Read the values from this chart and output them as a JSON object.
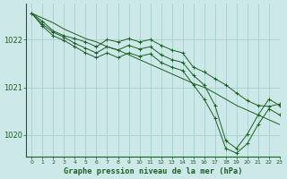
{
  "bg_color": "#cce8e8",
  "grid_color": "#a8cece",
  "line_color": "#1a6020",
  "marker_color": "#1a6020",
  "title": "Graphe pression niveau de la mer (hPa)",
  "xlim": [
    -0.5,
    23
  ],
  "ylim": [
    1019.55,
    1022.75
  ],
  "yticks": [
    1020,
    1021,
    1022
  ],
  "xticks": [
    0,
    1,
    2,
    3,
    4,
    5,
    6,
    7,
    8,
    9,
    10,
    11,
    12,
    13,
    14,
    15,
    16,
    17,
    18,
    19,
    20,
    21,
    22,
    23
  ],
  "series": [
    {
      "x": [
        0,
        1,
        2,
        3,
        4,
        5,
        6,
        7,
        8,
        9,
        10,
        11,
        12,
        13,
        14,
        15,
        16,
        17,
        18,
        19,
        20,
        21,
        22,
        23
      ],
      "y": [
        1022.55,
        1022.45,
        1022.35,
        1022.22,
        1022.12,
        1022.02,
        1021.95,
        1021.85,
        1021.78,
        1021.68,
        1021.58,
        1021.48,
        1021.38,
        1021.28,
        1021.18,
        1021.08,
        1021.0,
        1020.88,
        1020.75,
        1020.62,
        1020.52,
        1020.42,
        1020.32,
        1020.22
      ],
      "marker": false
    },
    {
      "x": [
        0,
        1,
        2,
        3,
        4,
        5,
        6,
        7,
        8,
        9,
        10,
        11,
        12,
        13,
        14,
        15,
        16,
        17,
        18,
        19,
        20,
        21,
        22,
        23
      ],
      "y": [
        1022.55,
        1022.38,
        1022.18,
        1022.08,
        1022.02,
        1021.95,
        1021.85,
        1022.0,
        1021.95,
        1022.02,
        1021.95,
        1022.0,
        1021.88,
        1021.78,
        1021.72,
        1021.42,
        1021.32,
        1021.18,
        1021.05,
        1020.88,
        1020.72,
        1020.62,
        1020.6,
        1020.65
      ],
      "marker": true
    },
    {
      "x": [
        0,
        1,
        2,
        3,
        4,
        5,
        6,
        7,
        8,
        9,
        10,
        11,
        12,
        13,
        14,
        15,
        16,
        17,
        18,
        19,
        20,
        21,
        22,
        23
      ],
      "y": [
        1022.55,
        1022.32,
        1022.15,
        1022.05,
        1021.92,
        1021.82,
        1021.72,
        1021.85,
        1021.78,
        1021.88,
        1021.8,
        1021.85,
        1021.68,
        1021.58,
        1021.52,
        1021.25,
        1021.05,
        1020.62,
        1019.88,
        1019.72,
        1020.02,
        1020.42,
        1020.75,
        1020.62
      ],
      "marker": true
    },
    {
      "x": [
        0,
        1,
        2,
        3,
        4,
        5,
        6,
        7,
        8,
        9,
        10,
        11,
        12,
        13,
        14,
        15,
        16,
        17,
        18,
        19,
        20,
        21,
        22,
        23
      ],
      "y": [
        1022.55,
        1022.28,
        1022.08,
        1021.98,
        1021.85,
        1021.72,
        1021.62,
        1021.72,
        1021.62,
        1021.72,
        1021.65,
        1021.7,
        1021.52,
        1021.42,
        1021.35,
        1021.05,
        1020.75,
        1020.35,
        1019.72,
        1019.62,
        1019.82,
        1020.22,
        1020.55,
        1020.42
      ],
      "marker": true
    }
  ]
}
